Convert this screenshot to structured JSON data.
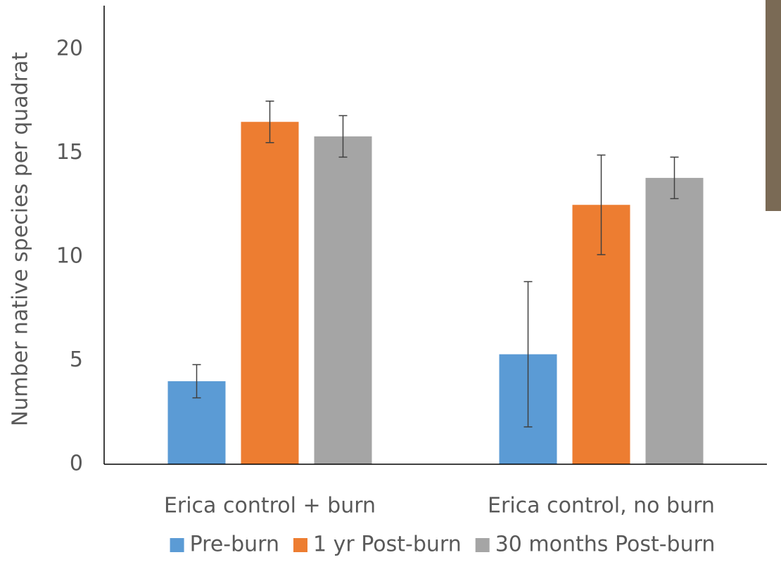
{
  "chart_data": {
    "type": "bar",
    "y_label": "Number native species per quadrat",
    "categories": [
      "Erica control + burn",
      "Erica control, no burn"
    ],
    "series": [
      {
        "name": "Pre-burn",
        "color": "#5b9bd5",
        "values": [
          4.0,
          5.3
        ],
        "errors": [
          0.8,
          3.5
        ]
      },
      {
        "name": "1 yr Post-burn",
        "color": "#ed7d31",
        "values": [
          16.5,
          12.5
        ],
        "errors": [
          1.0,
          2.4
        ]
      },
      {
        "name": "30 months Post-burn",
        "color": "#a5a5a5",
        "values": [
          15.8,
          13.8
        ],
        "errors": [
          1.0,
          1.0
        ]
      }
    ],
    "ylim": [
      0,
      22
    ],
    "yticks": [
      0,
      5,
      10,
      15,
      20
    ],
    "grid": false,
    "legend": "bottom"
  }
}
